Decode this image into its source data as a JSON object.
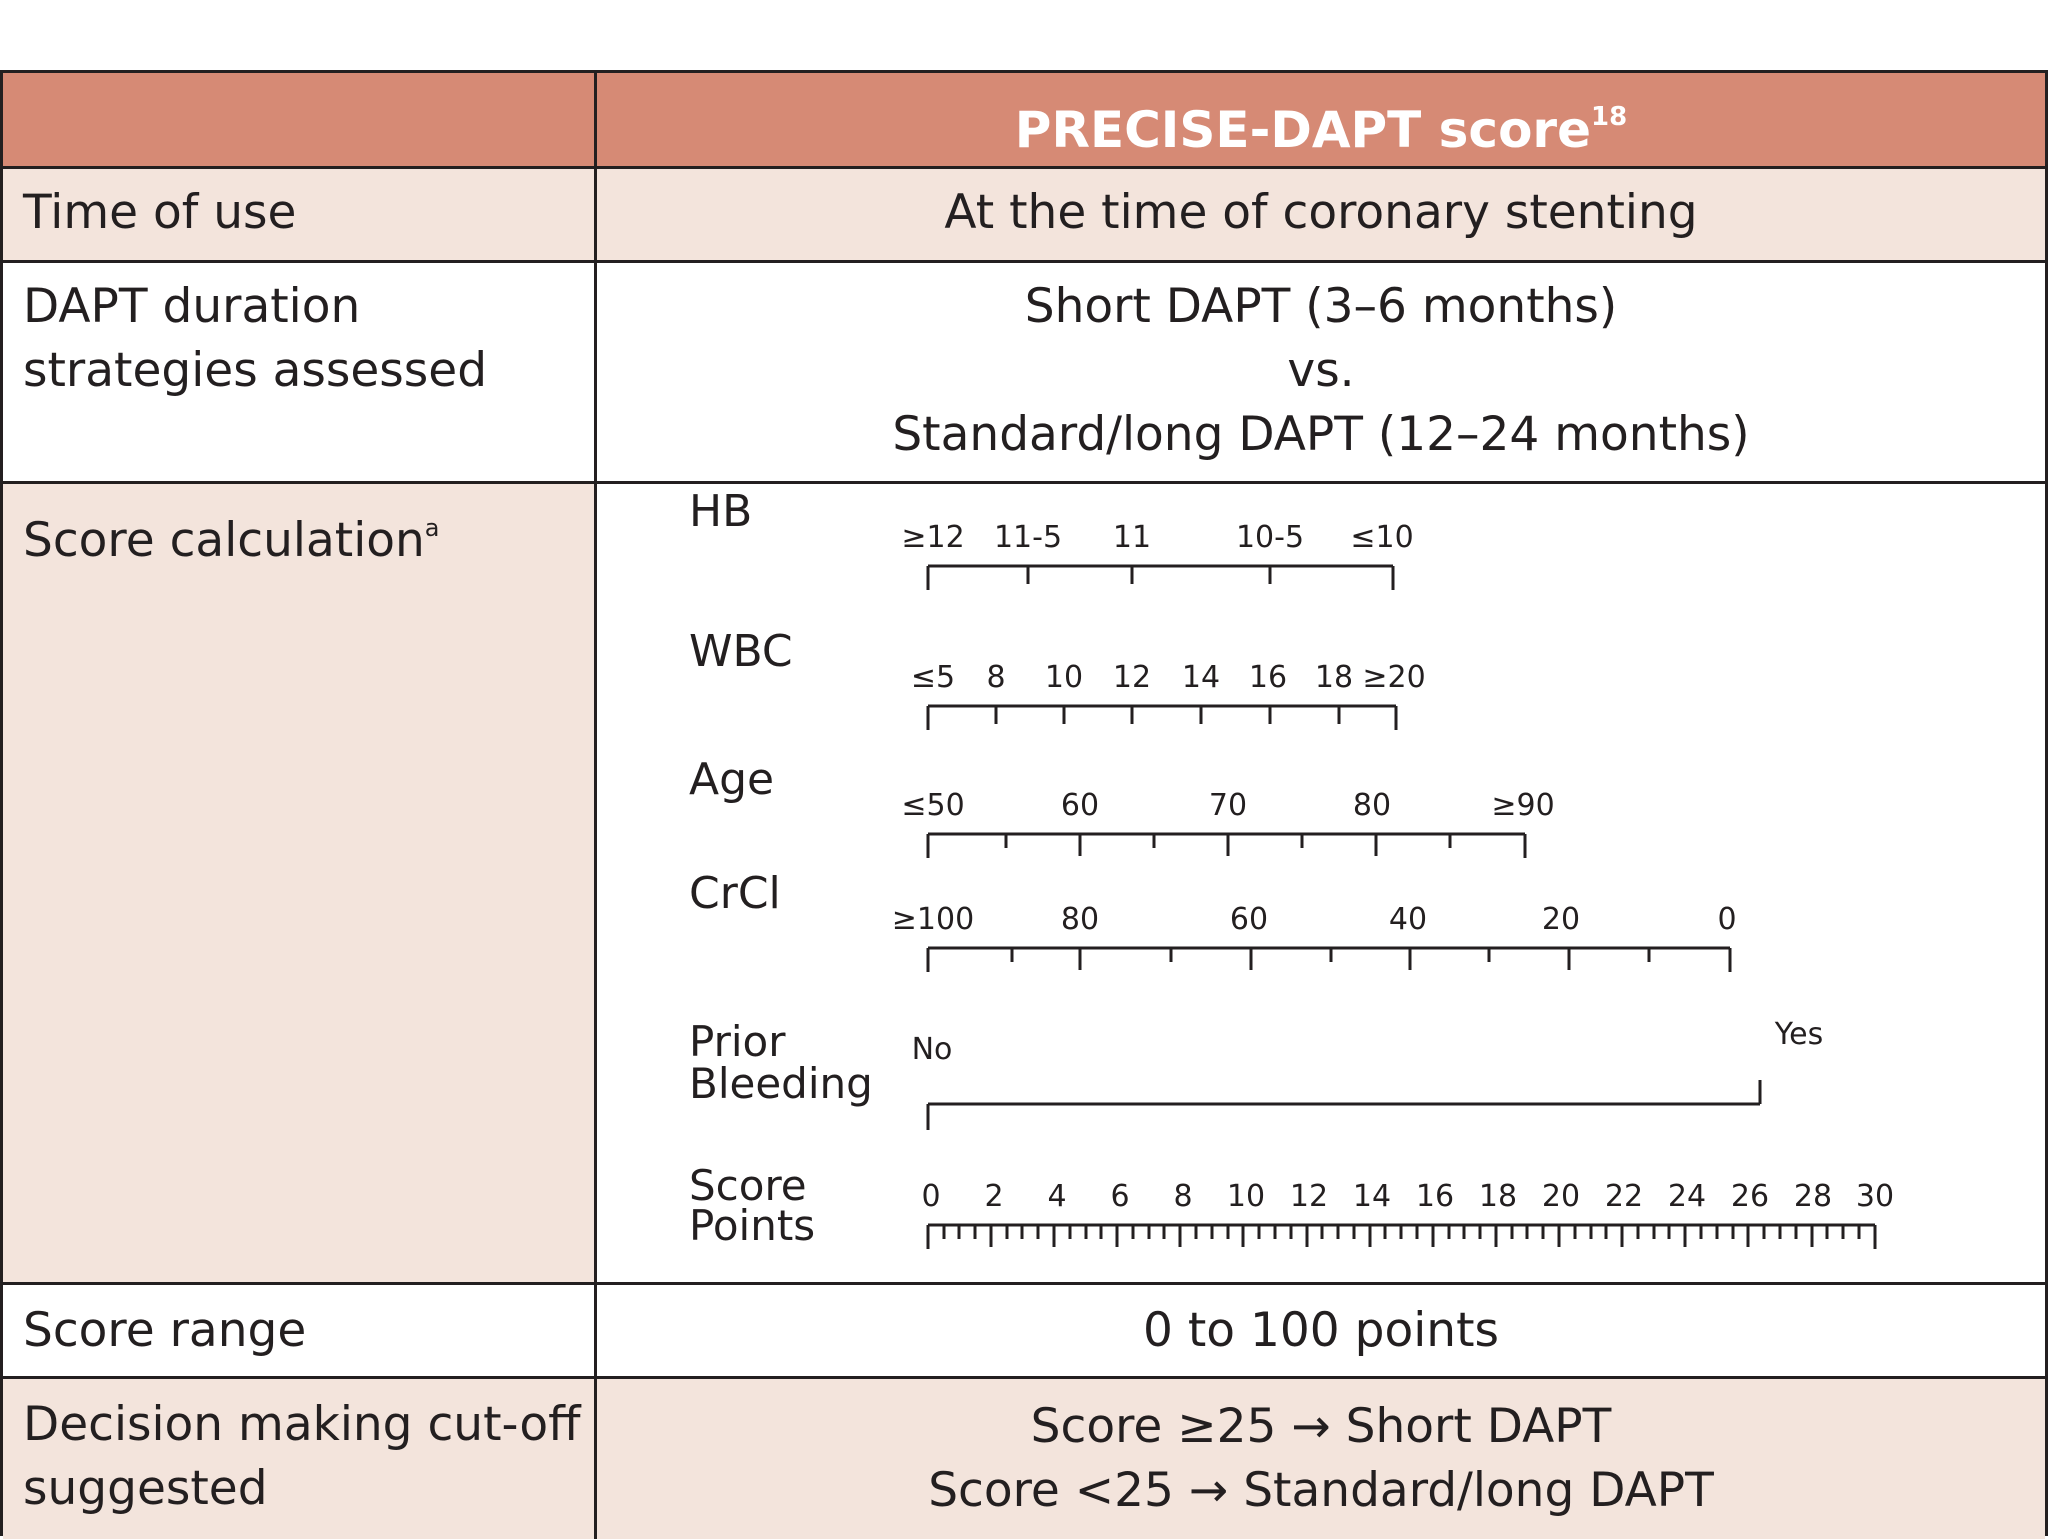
{
  "header": {
    "title": "PRECISE-DAPT score",
    "title_ref": "18"
  },
  "rows": {
    "time_of_use": {
      "label": "Time of use",
      "value": "At the time of coronary stenting"
    },
    "dapt_duration": {
      "label_line1": "DAPT duration",
      "label_line2": "strategies assessed",
      "value_line1": "Short DAPT (3–6 months)",
      "value_line2": "vs.",
      "value_line3": "Standard/long DAPT (12–24 months)"
    },
    "score_calc": {
      "label": "Score calculation",
      "footnote": "a"
    },
    "score_range": {
      "label": "Score range",
      "value": "0 to 100 points"
    },
    "cutoff": {
      "label_line1": "Decision making cut-off",
      "label_line2": "suggested",
      "value_line1": "Score ≥25 → Short DAPT",
      "value_line2": "Score <25 → Standard/long DAPT"
    }
  },
  "nomogram": {
    "scales": [
      {
        "name": "HB",
        "ticks": [
          "≥12",
          "11-5",
          "11",
          "10-5",
          "≤10"
        ]
      },
      {
        "name": "WBC",
        "ticks": [
          "≤5",
          "8",
          "10",
          "12",
          "14",
          "16",
          "18",
          "≥20"
        ]
      },
      {
        "name": "Age",
        "ticks": [
          "≤50",
          "60",
          "70",
          "80",
          "≥90"
        ]
      },
      {
        "name": "CrCl",
        "ticks": [
          "≥100",
          "80",
          "60",
          "40",
          "20",
          "0"
        ]
      },
      {
        "name_line1": "Prior",
        "name_line2": "Bleeding",
        "ticks": [
          "No",
          "Yes"
        ]
      },
      {
        "name_line1": "Score",
        "name_line2": "Points",
        "ticks": [
          "0",
          "2",
          "4",
          "6",
          "8",
          "10",
          "12",
          "14",
          "16",
          "18",
          "20",
          "22",
          "24",
          "26",
          "28",
          "30"
        ]
      }
    ]
  }
}
